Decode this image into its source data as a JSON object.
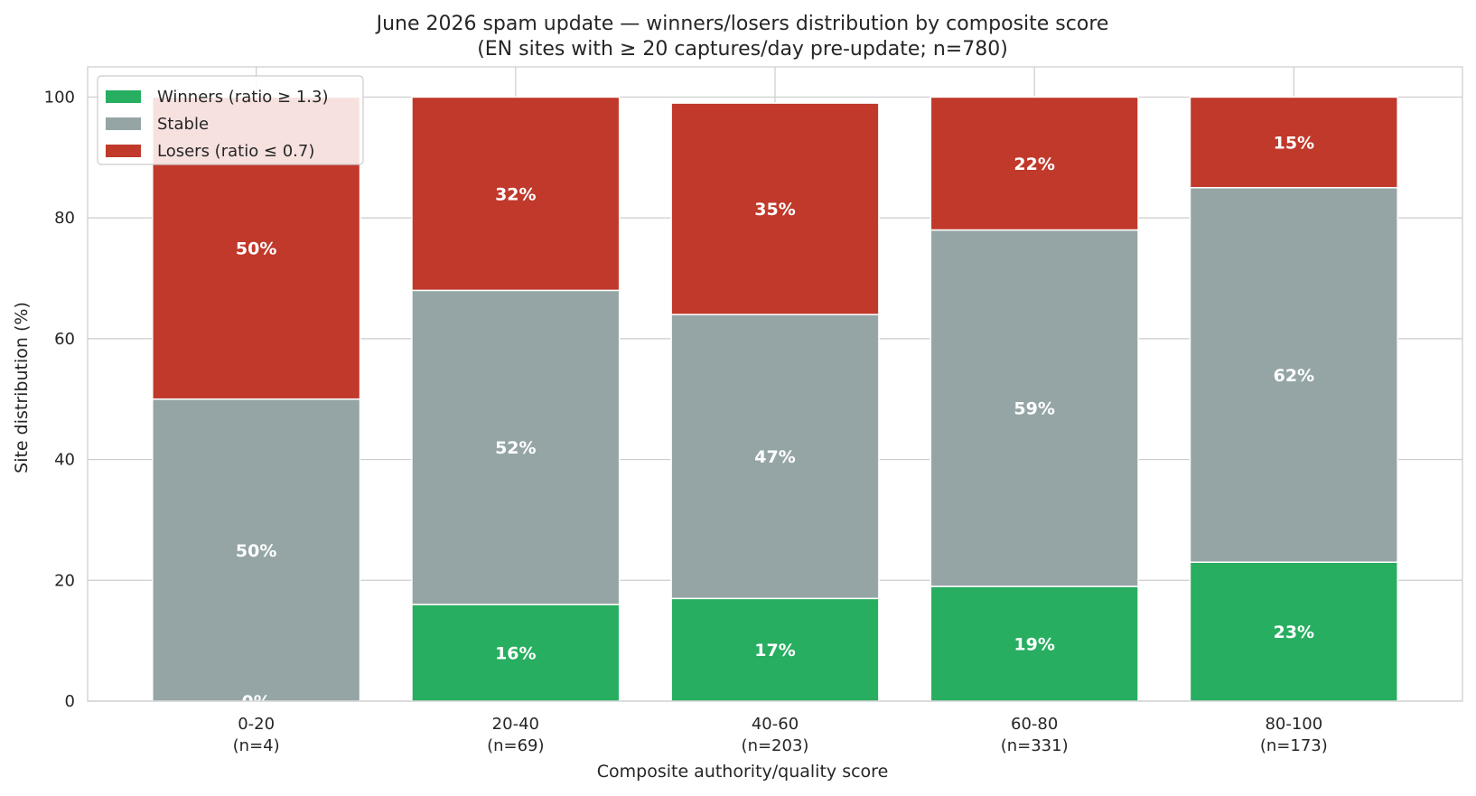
{
  "chart_data": {
    "type": "bar",
    "stacked": true,
    "title": "June 2026 spam update — winners/losers distribution by composite score",
    "subtitle": "(EN sites with ≥ 20 captures/day pre-update; n=780)",
    "xlabel": "Composite authority/quality score",
    "ylabel": "Site distribution (%)",
    "ylim": [
      0,
      105
    ],
    "yticks": [
      "0",
      "20",
      "40",
      "60",
      "80",
      "100"
    ],
    "grid": true,
    "legend_position": "top-left",
    "categories": [
      "0-20",
      "20-40",
      "40-60",
      "60-80",
      "80-100"
    ],
    "category_counts": [
      "(n=4)",
      "(n=69)",
      "(n=203)",
      "(n=331)",
      "(n=173)"
    ],
    "series": [
      {
        "name": "Winners (ratio ≥ 1.3)",
        "color": "#27ae60",
        "values": [
          0,
          16,
          17,
          19,
          23
        ],
        "labels": [
          "0%",
          "16%",
          "17%",
          "19%",
          "23%"
        ]
      },
      {
        "name": "Stable",
        "color": "#95a5a6",
        "values": [
          50,
          52,
          47,
          59,
          62
        ],
        "labels": [
          "50%",
          "52%",
          "47%",
          "59%",
          "62%"
        ]
      },
      {
        "name": "Losers (ratio ≤ 0.7)",
        "color": "#c0392b",
        "values": [
          50,
          32,
          35,
          22,
          15
        ],
        "labels": [
          "50%",
          "32%",
          "35%",
          "22%",
          "15%"
        ]
      }
    ]
  }
}
